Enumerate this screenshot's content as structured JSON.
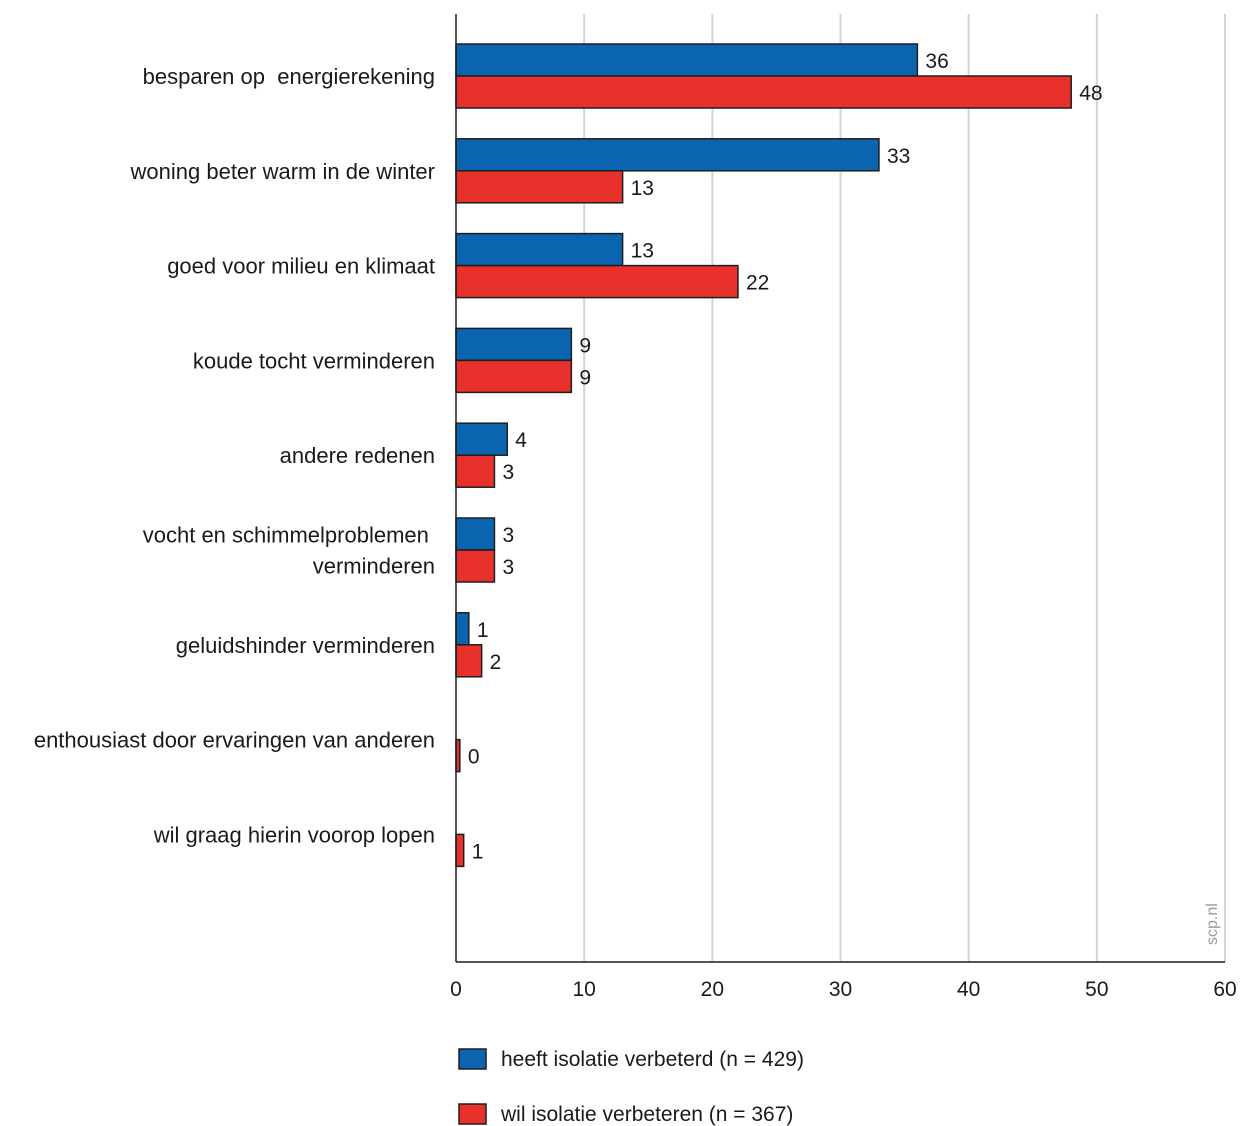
{
  "chart_data": {
    "type": "bar",
    "orientation": "horizontal",
    "categories": [
      [
        "besparen op  energierekening"
      ],
      [
        "woning beter warm in de winter"
      ],
      [
        "goed voor milieu en klimaat"
      ],
      [
        "koude tocht verminderen"
      ],
      [
        "andere redenen"
      ],
      [
        "vocht en schimmelproblemen ",
        "verminderen"
      ],
      [
        "geluidshinder verminderen"
      ],
      [
        "enthousiast door ervaringen van anderen"
      ],
      [
        "wil graag hierin voorop lopen"
      ]
    ],
    "series": [
      {
        "name": "heeft isolatie verbeterd (n = 429)",
        "color": "#0a64b0",
        "values": [
          36,
          33,
          13,
          9,
          4,
          3,
          1,
          0,
          0
        ],
        "labels": [
          "36",
          "33",
          "13",
          "9",
          "4",
          "3",
          "1",
          "",
          ""
        ]
      },
      {
        "name": "wil isolatie verbeteren (n = 367)",
        "color": "#e8312a",
        "values": [
          48,
          13,
          22,
          9,
          3,
          3,
          2,
          0.3,
          0.6
        ],
        "labels": [
          "48",
          "13",
          "22",
          "9",
          "3",
          "3",
          "2",
          "0",
          "1"
        ]
      }
    ],
    "xlim": [
      0,
      60
    ],
    "xticks": [
      0,
      10,
      20,
      30,
      40,
      50,
      60
    ],
    "grid": true,
    "legend_position": "bottom"
  },
  "watermark": "scp.nl"
}
